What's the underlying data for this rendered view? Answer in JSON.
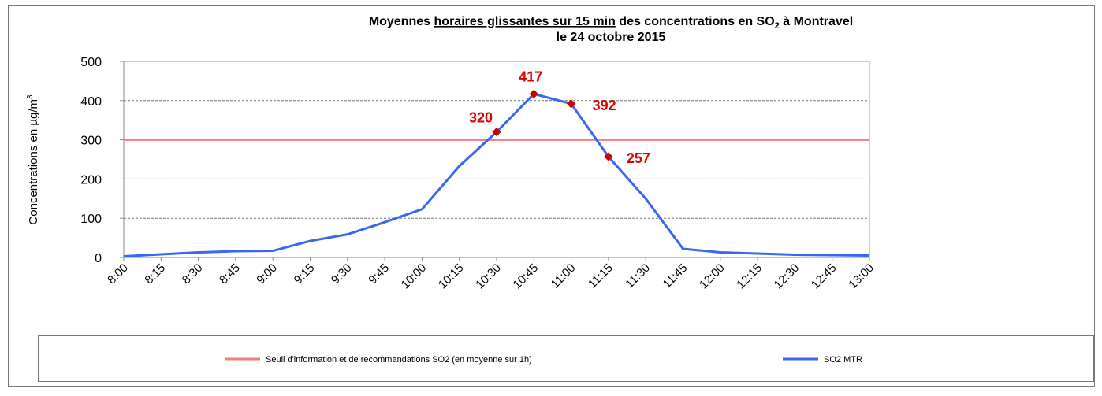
{
  "chart_data": {
    "type": "line",
    "title_parts": [
      "Moyennes ",
      "horaires glissantes sur 15 min",
      " des concentrations en SO",
      "2",
      " à Montravel"
    ],
    "subtitle": "le 24 octobre 2015",
    "y_label_parts": [
      "Concentrations en µg/m",
      "3"
    ],
    "categories": [
      "8:00",
      "8:15",
      "8:30",
      "8:45",
      "9:00",
      "9:15",
      "9:30",
      "9:45",
      "10:00",
      "10:15",
      "10:30",
      "10:45",
      "11:00",
      "11:15",
      "11:30",
      "11:45",
      "12:00",
      "12:15",
      "12:30",
      "12:45",
      "13:00"
    ],
    "series": [
      {
        "name": "Seuil d'information et de recommandations SO2 (en moyenne sur 1h)",
        "color": "#f47c7c",
        "values": [
          300,
          300,
          300,
          300,
          300,
          300,
          300,
          300,
          300,
          300,
          300,
          300,
          300,
          300,
          300,
          300,
          300,
          300,
          300,
          300,
          300
        ]
      },
      {
        "name": "SO2 MTR",
        "color": "#3a66f0",
        "values": [
          3,
          8,
          13,
          16,
          17,
          42,
          59,
          90,
          123,
          233,
          320,
          417,
          392,
          257,
          150,
          22,
          13,
          10,
          7,
          6,
          5
        ],
        "labeled_points": [
          10,
          11,
          12,
          13
        ],
        "marker_color": "#cc0000",
        "label_color": "#e00000"
      }
    ],
    "ylim": [
      0,
      500
    ],
    "yticks": [
      0,
      100,
      200,
      300,
      400,
      500
    ],
    "grid": true
  }
}
